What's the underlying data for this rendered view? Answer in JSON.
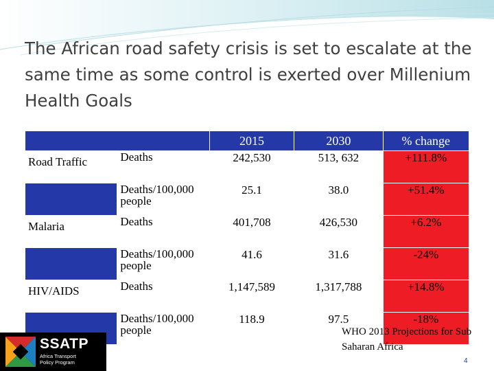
{
  "title": "The African road safety crisis is set to escalate at the same time as some control is exerted over Millenium Health Goals",
  "table": {
    "headers": [
      "2015",
      "2030",
      "% change"
    ],
    "rows": [
      {
        "category": "Road Traffic",
        "label": "Deaths",
        "v2015": "242,530",
        "v2030": "513, 632",
        "change": "+111.8%"
      },
      {
        "category": "",
        "label": "Deaths/100,000 people",
        "v2015": "25.1",
        "v2030": "38.0",
        "change": "+51.4%"
      },
      {
        "category": "Malaria",
        "label": "Deaths",
        "v2015": "401,708",
        "v2030": "426,530",
        "change": "+6.2%"
      },
      {
        "category": "",
        "label": "Deaths/100,000 people",
        "v2015": "41.6",
        "v2030": "31.6",
        "change": "-24%"
      },
      {
        "category": "HIV/AIDS",
        "label": "Deaths",
        "v2015": "1,147,589",
        "v2030": "1,317,788",
        "change": "+14.8%"
      },
      {
        "category": "",
        "label": "Deaths/100,000 people",
        "v2015": "118.9",
        "v2030": "97.5",
        "change": "-18%"
      }
    ]
  },
  "source_note": "WHO 2013 Projections for Sub Saharan Africa",
  "page_number": "4",
  "logo": {
    "brand": "SSATP",
    "line1": "Africa Transport",
    "line2": "Policy Program"
  },
  "colors": {
    "header_blue": "#2538a8",
    "change_red": "#ee1c24",
    "title_gray": "#3f3f3f"
  }
}
